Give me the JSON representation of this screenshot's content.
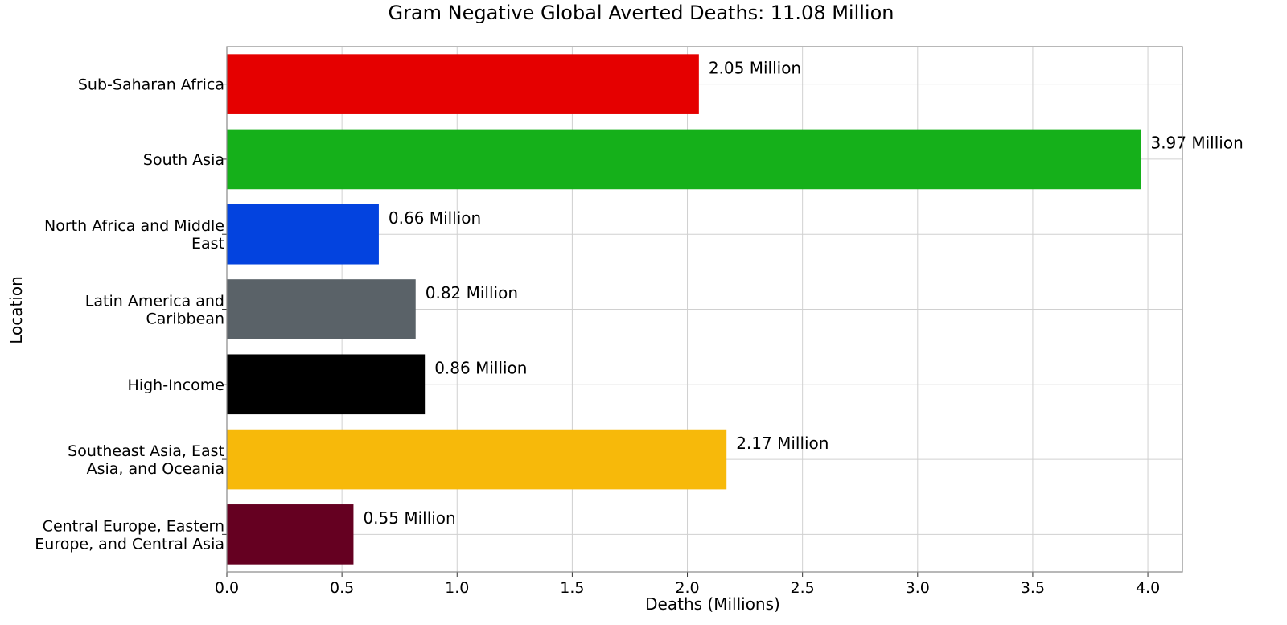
{
  "chart_data": {
    "type": "bar",
    "orientation": "horizontal",
    "title": "Gram Negative Global  Averted Deaths: 11.08 Million",
    "xlabel": "Deaths (Millions)",
    "ylabel": "Location",
    "xlim": [
      0,
      4.15
    ],
    "xticks": [
      "0.0",
      "0.5",
      "1.0",
      "1.5",
      "2.0",
      "2.5",
      "3.0",
      "3.5",
      "4.0"
    ],
    "grid": true,
    "categories": [
      [
        "Sub-Saharan Africa"
      ],
      [
        "South Asia"
      ],
      [
        "North Africa and Middle",
        "East"
      ],
      [
        "Latin America and",
        "Caribbean"
      ],
      [
        "High-Income"
      ],
      [
        "Southeast Asia, East",
        "Asia, and Oceania"
      ],
      [
        "Central Europe, Eastern",
        "Europe, and Central Asia"
      ]
    ],
    "values": [
      2.05,
      3.97,
      0.66,
      0.82,
      0.86,
      2.17,
      0.55
    ],
    "value_labels": [
      "2.05 Million",
      "3.97 Million",
      "0.66 Million",
      "0.82 Million",
      "0.86 Million",
      "2.17 Million",
      "0.55 Million"
    ],
    "colors": [
      "#e50000",
      "#15b01a",
      "#0343df",
      "#5a6268",
      "#000000",
      "#f7b90a",
      "#650021"
    ]
  }
}
